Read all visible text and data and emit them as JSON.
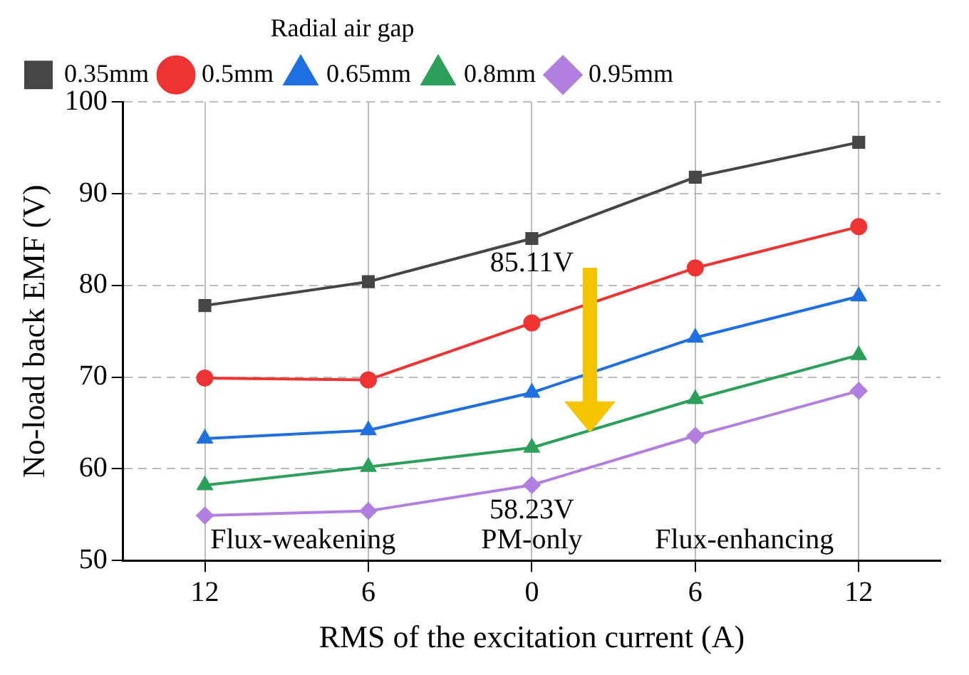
{
  "chart_data": {
    "type": "line",
    "xlabel": "RMS of the excitation current (A)",
    "ylabel": "No-load back EMF (V)",
    "legend_title": "Radial air gap",
    "categories": [
      "12",
      "6",
      "0",
      "6",
      "12"
    ],
    "series": [
      {
        "name": "0.35mm",
        "color": "#454545",
        "marker": "square",
        "values": [
          77.8,
          80.4,
          85.11,
          91.8,
          95.6
        ]
      },
      {
        "name": "0.5mm",
        "color": "#ee3333",
        "marker": "circle",
        "values": [
          69.9,
          69.7,
          75.9,
          81.9,
          86.4
        ]
      },
      {
        "name": "0.65mm",
        "color": "#1f6fe0",
        "marker": "triangle",
        "values": [
          63.3,
          64.2,
          68.3,
          74.3,
          78.8
        ]
      },
      {
        "name": "0.8mm",
        "color": "#2ca05a",
        "marker": "triangle",
        "values": [
          58.2,
          60.2,
          62.3,
          67.6,
          72.4
        ]
      },
      {
        "name": "0.95mm",
        "color": "#b07fe0",
        "marker": "diamond",
        "values": [
          54.9,
          55.4,
          58.23,
          63.6,
          68.5
        ]
      }
    ],
    "ylim": [
      50,
      100
    ],
    "yticks": [
      50,
      60,
      70,
      80,
      90,
      100
    ],
    "grid": true,
    "legend": "top left",
    "line_style": "solid",
    "annotations": [
      {
        "text": "85.11V",
        "x": "0",
        "y": 85.11
      },
      {
        "text": "58.23V",
        "x": "0",
        "y": 58.23
      },
      "Flux-weakening",
      "PM-only",
      "Flux-enhancing"
    ]
  }
}
